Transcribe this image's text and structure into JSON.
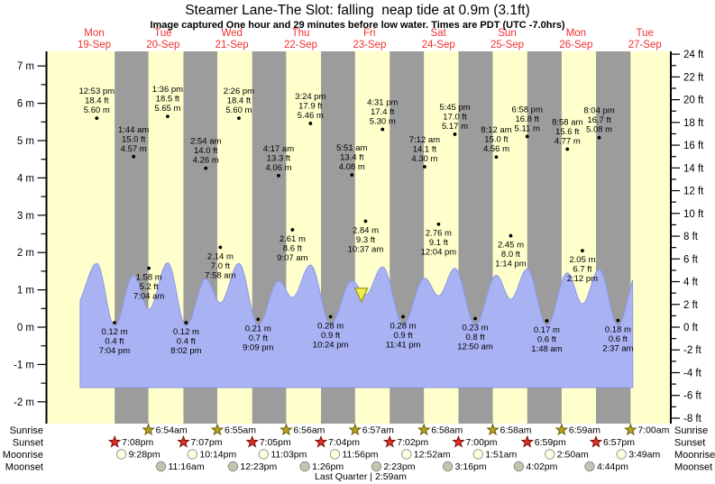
{
  "title": "Steamer Lane-The Slot: falling  neap tide at 0.9m (3.1ft)",
  "subtitle": "Image captured One hour and 29 minutes before low water. Times are PDT (UTC -7.0hrs)",
  "row_labels": {
    "sunrise": "Sunrise",
    "sunset": "Sunset",
    "moonrise": "Moonrise",
    "moonset": "Moonset"
  },
  "colors": {
    "day_band": "#ffffcc",
    "night_band": "#9c9c9c",
    "tide_fill": "#a9b2f3",
    "tide_stroke": "#8d98e8",
    "date_red": "#f03030",
    "sunrise_star_fill": "#b8a21d",
    "sunrise_star_stroke": "#6b5e0e",
    "sunset_star_fill": "#e03222",
    "sunset_star_stroke": "#7a1010",
    "moonrise_fill": "#ffffdd",
    "moonrise_stroke": "#9a9a9a",
    "moonset_fill": "#c6c4ae",
    "moonset_stroke": "#8f8f8f",
    "marker_fill": "#f2ee4e",
    "marker_stroke": "#9a9a20",
    "axis": "#000000"
  },
  "chart_data": {
    "type": "area",
    "title": "Steamer Lane-The Slot: falling  neap tide at 0.9m (3.1ft)",
    "subtitle": "Image captured One hour and 29 minutes before low water. Times are PDT (UTC -7.0hrs)",
    "y_axis_left": {
      "unit": "m",
      "min": -2,
      "max": 7,
      "major_step": 1,
      "minor_step": 0.5,
      "label_suffix": " m"
    },
    "y_axis_right": {
      "unit": "ft",
      "min": -8,
      "max": 24,
      "major_step": 2,
      "minor_step": 1,
      "label_suffix": " ft"
    },
    "day_columns": [
      {
        "weekday": "Mon",
        "date": "19-Sep",
        "day": 19
      },
      {
        "weekday": "Tue",
        "date": "20-Sep",
        "day": 20
      },
      {
        "weekday": "Wed",
        "date": "21-Sep",
        "day": 21
      },
      {
        "weekday": "Thu",
        "date": "22-Sep",
        "day": 22
      },
      {
        "weekday": "Fri",
        "date": "23-Sep",
        "day": 23
      },
      {
        "weekday": "Sat",
        "date": "24-Sep",
        "day": 24
      },
      {
        "weekday": "Sun",
        "date": "25-Sep",
        "day": 25
      },
      {
        "weekday": "Mon",
        "date": "26-Sep",
        "day": 26
      },
      {
        "weekday": "Tue",
        "date": "27-Sep",
        "day": 27
      }
    ],
    "tide_events": [
      {
        "day": 19,
        "time": "12:53 pm",
        "ft": "18.4",
        "m": "5.60",
        "type": "high"
      },
      {
        "day": 19,
        "time": "7:04 pm",
        "ft": "0.4",
        "m": "0.12",
        "type": "low"
      },
      {
        "day": 20,
        "time": "1:44 am",
        "ft": "15.0",
        "m": "4.57",
        "type": "high"
      },
      {
        "day": 20,
        "time": "7:04 am",
        "ft": "5.2",
        "m": "1.58",
        "type": "low"
      },
      {
        "day": 20,
        "time": "1:36 pm",
        "ft": "18.5",
        "m": "5.65",
        "type": "high"
      },
      {
        "day": 20,
        "time": "8:02 pm",
        "ft": "0.4",
        "m": "0.12",
        "type": "low"
      },
      {
        "day": 21,
        "time": "2:54 am",
        "ft": "14.0",
        "m": "4.26",
        "type": "high"
      },
      {
        "day": 21,
        "time": "7:58 am",
        "ft": "7.0",
        "m": "2.14",
        "type": "low"
      },
      {
        "day": 21,
        "time": "2:26 pm",
        "ft": "18.4",
        "m": "5.60",
        "type": "high"
      },
      {
        "day": 21,
        "time": "9:09 pm",
        "ft": "0.7",
        "m": "0.21",
        "type": "low"
      },
      {
        "day": 22,
        "time": "4:17 am",
        "ft": "13.3",
        "m": "4.06",
        "type": "high"
      },
      {
        "day": 22,
        "time": "9:07 am",
        "ft": "8.6",
        "m": "2.61",
        "type": "low"
      },
      {
        "day": 22,
        "time": "3:24 pm",
        "ft": "17.9",
        "m": "5.46",
        "type": "high"
      },
      {
        "day": 22,
        "time": "10:24 pm",
        "ft": "0.9",
        "m": "0.28",
        "type": "low"
      },
      {
        "day": 23,
        "time": "5:51 am",
        "ft": "13.4",
        "m": "4.08",
        "type": "high"
      },
      {
        "day": 23,
        "time": "10:37 am",
        "ft": "9.3",
        "m": "2.84",
        "type": "low"
      },
      {
        "day": 23,
        "time": "4:31 pm",
        "ft": "17.4",
        "m": "5.30",
        "type": "high"
      },
      {
        "day": 23,
        "time": "11:41 pm",
        "ft": "0.9",
        "m": "0.28",
        "type": "low"
      },
      {
        "day": 24,
        "time": "7:12 am",
        "ft": "14.1",
        "m": "4.30",
        "type": "high"
      },
      {
        "day": 24,
        "time": "12:04 pm",
        "ft": "9.1",
        "m": "2.76",
        "type": "low"
      },
      {
        "day": 24,
        "time": "5:45 pm",
        "ft": "17.0",
        "m": "5.17",
        "type": "high"
      },
      {
        "day": 25,
        "time": "12:50 am",
        "ft": "0.8",
        "m": "0.23",
        "type": "low"
      },
      {
        "day": 25,
        "time": "8:12 am",
        "ft": "15.0",
        "m": "4.56",
        "type": "high"
      },
      {
        "day": 25,
        "time": "1:14 pm",
        "ft": "8.0",
        "m": "2.45",
        "type": "low"
      },
      {
        "day": 25,
        "time": "6:58 pm",
        "ft": "16.8",
        "m": "5.11",
        "type": "high"
      },
      {
        "day": 26,
        "time": "1:48 am",
        "ft": "0.6",
        "m": "0.17",
        "type": "low"
      },
      {
        "day": 26,
        "time": "8:58 am",
        "ft": "15.6",
        "m": "4.77",
        "type": "high"
      },
      {
        "day": 26,
        "time": "2:12 pm",
        "ft": "6.7",
        "m": "2.05",
        "type": "low"
      },
      {
        "day": 26,
        "time": "8:04 pm",
        "ft": "16.7",
        "m": "5.08",
        "type": "high"
      },
      {
        "day": 27,
        "time": "2:37 am",
        "ft": "0.6",
        "m": "0.18",
        "type": "low"
      }
    ],
    "current_marker": {
      "day": 23,
      "time": "9:08 am",
      "tide_m": 0.9
    },
    "sunrise": [
      {
        "day": 20,
        "time": "6:54am"
      },
      {
        "day": 21,
        "time": "6:55am"
      },
      {
        "day": 22,
        "time": "6:56am"
      },
      {
        "day": 23,
        "time": "6:57am"
      },
      {
        "day": 24,
        "time": "6:58am"
      },
      {
        "day": 25,
        "time": "6:58am"
      },
      {
        "day": 26,
        "time": "6:59am"
      },
      {
        "day": 27,
        "time": "7:00am"
      }
    ],
    "sunset": [
      {
        "day": 19,
        "time": "7:08pm"
      },
      {
        "day": 20,
        "time": "7:07pm"
      },
      {
        "day": 21,
        "time": "7:05pm"
      },
      {
        "day": 22,
        "time": "7:04pm"
      },
      {
        "day": 23,
        "time": "7:02pm"
      },
      {
        "day": 24,
        "time": "7:00pm"
      },
      {
        "day": 25,
        "time": "6:59pm"
      },
      {
        "day": 26,
        "time": "6:57pm"
      }
    ],
    "moonrise": [
      {
        "day": 19,
        "time": "9:28pm"
      },
      {
        "day": 20,
        "time": "10:14pm"
      },
      {
        "day": 21,
        "time": "11:03pm"
      },
      {
        "day": 22,
        "time": "11:56pm"
      },
      {
        "day": 24,
        "time": "12:52am"
      },
      {
        "day": 25,
        "time": "1:51am"
      },
      {
        "day": 26,
        "time": "2:50am"
      },
      {
        "day": 27,
        "time": "3:49am"
      }
    ],
    "moonset": [
      {
        "day": 20,
        "time": "11:16am"
      },
      {
        "day": 21,
        "time": "12:23pm"
      },
      {
        "day": 22,
        "time": "1:26pm"
      },
      {
        "day": 23,
        "time": "2:23pm"
      },
      {
        "day": 24,
        "time": "3:16pm"
      },
      {
        "day": 25,
        "time": "4:02pm"
      },
      {
        "day": 26,
        "time": "4:44pm"
      }
    ],
    "moon_phase_note": "Last Quarter | 2:59am"
  }
}
